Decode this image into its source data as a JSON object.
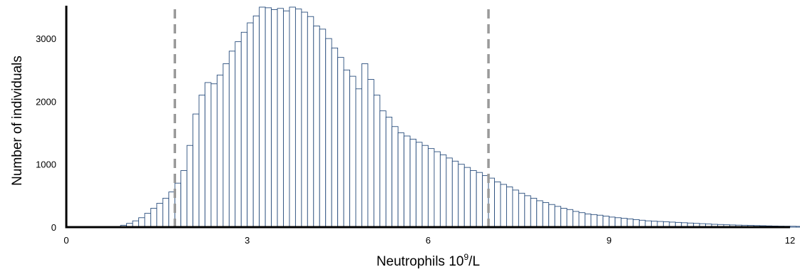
{
  "chart_data": {
    "type": "bar",
    "title": "",
    "xlabel": "Neutrophils 10",
    "xlabel_sup": "9",
    "xlabel_suffix": "/L",
    "ylabel": "Number of individuals",
    "xlim": [
      0,
      12
    ],
    "ylim": [
      0,
      3500
    ],
    "xticks": [
      0,
      3,
      6,
      9,
      12
    ],
    "xtick_labels": [
      "0",
      "3",
      "6",
      "9",
      "12"
    ],
    "yticks": [
      0,
      1000,
      2000,
      3000
    ],
    "ytick_labels": [
      "0",
      "1000",
      "2000",
      "3000"
    ],
    "bin_width": 0.1,
    "bin_start": 0.8,
    "values": [
      10,
      30,
      60,
      100,
      150,
      220,
      300,
      380,
      460,
      560,
      700,
      900,
      1300,
      1800,
      2100,
      2300,
      2280,
      2420,
      2600,
      2800,
      2950,
      3100,
      3250,
      3360,
      3500,
      3490,
      3460,
      3480,
      3440,
      3500,
      3470,
      3420,
      3350,
      3200,
      3150,
      3000,
      2850,
      2700,
      2500,
      2400,
      2200,
      2600,
      2350,
      2100,
      1850,
      1750,
      1600,
      1500,
      1450,
      1400,
      1350,
      1300,
      1250,
      1200,
      1150,
      1100,
      1050,
      1000,
      950,
      900,
      870,
      820,
      780,
      720,
      680,
      640,
      590,
      540,
      500,
      460,
      420,
      390,
      360,
      330,
      300,
      280,
      250,
      230,
      210,
      200,
      190,
      175,
      160,
      150,
      140,
      130,
      120,
      110,
      100,
      95,
      90,
      85,
      80,
      75,
      70,
      65,
      60,
      55,
      50,
      45,
      42,
      38,
      35,
      32,
      30,
      28,
      25,
      23,
      20,
      18,
      16,
      15,
      14,
      12,
      11,
      10,
      9,
      8,
      8,
      7,
      7,
      6,
      6,
      5,
      5,
      5,
      4,
      4,
      4,
      3,
      3,
      3,
      2,
      2,
      2,
      2,
      2,
      1,
      1,
      1
    ],
    "reference_lines_x": [
      1.8,
      7.0
    ],
    "colors": {
      "bar_fill": "#ffffff",
      "bar_stroke": "#2b4f7e",
      "reference_line": "#9a9a9a",
      "axis": "#000000"
    },
    "grid": false,
    "legend": "none"
  }
}
